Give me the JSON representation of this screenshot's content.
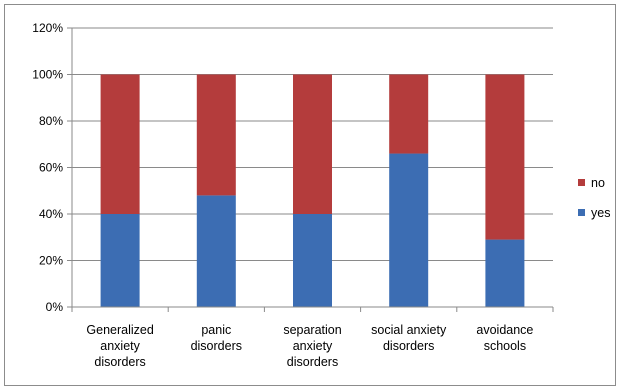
{
  "chart_data": {
    "type": "bar",
    "stacked": true,
    "categories": [
      [
        "Generalized",
        "anxiety",
        "disorders"
      ],
      [
        "panic",
        "disorders"
      ],
      [
        "separation",
        "anxiety",
        "disorders"
      ],
      [
        "social anxiety",
        "disorders"
      ],
      [
        "avoidance",
        "schools"
      ]
    ],
    "series": [
      {
        "name": "yes",
        "color": "#3c6db3",
        "values": [
          40,
          48,
          40,
          66,
          29
        ]
      },
      {
        "name": "no",
        "color": "#b43c3c",
        "values": [
          60,
          52,
          60,
          34,
          71
        ]
      }
    ],
    "y_ticks": [
      "0%",
      "20%",
      "40%",
      "60%",
      "80%",
      "100%",
      "120%"
    ],
    "ylim": [
      0,
      120
    ],
    "grid": true,
    "legend_position": "right",
    "legend_order": [
      "no",
      "yes"
    ]
  }
}
